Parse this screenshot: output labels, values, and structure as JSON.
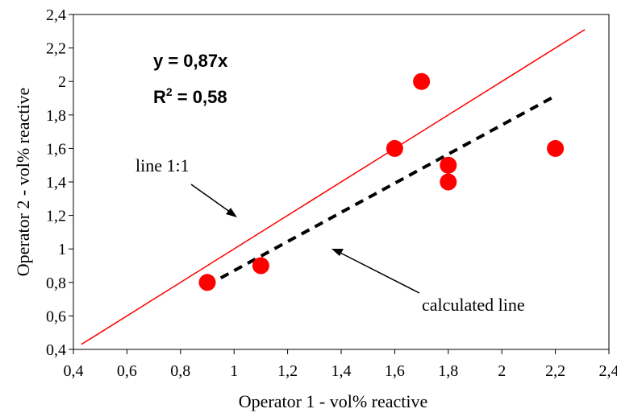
{
  "chart_data": {
    "type": "scatter",
    "title": "",
    "xlabel": "Operator 1 - vol% reactive",
    "ylabel": "Operator 2 - vol% reactive",
    "xlim": [
      0.4,
      2.4
    ],
    "ylim": [
      0.4,
      2.4
    ],
    "xticks": [
      0.4,
      0.6,
      0.8,
      1.0,
      1.2,
      1.4,
      1.6,
      1.8,
      2.0,
      2.2,
      2.4
    ],
    "yticks": [
      0.4,
      0.6,
      0.8,
      1.0,
      1.2,
      1.4,
      1.6,
      1.8,
      2.0,
      2.2,
      2.4
    ],
    "xtick_labels": [
      "0,4",
      "0,6",
      "0,8",
      "1",
      "1,2",
      "1,4",
      "1,6",
      "1,8",
      "2",
      "2,2",
      "2,4"
    ],
    "ytick_labels": [
      "0,4",
      "0,6",
      "0,8",
      "1",
      "1,2",
      "1,4",
      "1,6",
      "1,8",
      "2",
      "2,2",
      "2,4"
    ],
    "grid": false,
    "points": [
      {
        "x": 0.9,
        "y": 0.8
      },
      {
        "x": 1.1,
        "y": 0.9
      },
      {
        "x": 1.6,
        "y": 1.6
      },
      {
        "x": 1.7,
        "y": 2.0
      },
      {
        "x": 1.8,
        "y": 1.5
      },
      {
        "x": 1.8,
        "y": 1.4
      },
      {
        "x": 2.2,
        "y": 1.6
      }
    ],
    "point_color": "#ff0000",
    "lines": [
      {
        "label": "line 1:1",
        "slope": 1.0,
        "x_range": [
          0.43,
          2.31
        ],
        "color": "#ff0000",
        "style": "solid"
      },
      {
        "label": "calculated line",
        "slope": 0.87,
        "x_range": [
          0.9,
          2.2
        ],
        "color": "#000000",
        "style": "dashed"
      }
    ],
    "equation": "y = 0,87x",
    "r2_prefix": "R",
    "r2_sup": "2",
    "r2_value": " = 0,58",
    "annotations": {
      "line_1_1": "line 1:1",
      "calculated": "calculated line"
    }
  }
}
